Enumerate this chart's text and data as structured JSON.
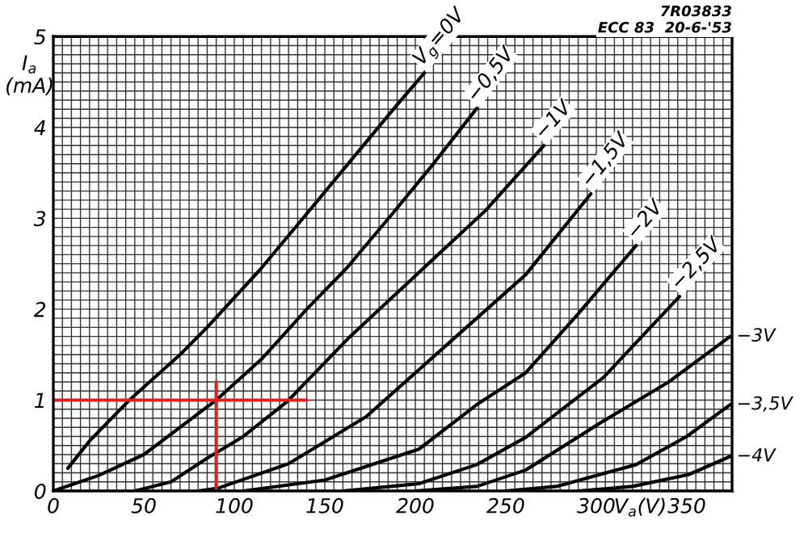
{
  "chart_data": {
    "type": "line",
    "xlabel": "V$_{a}$(V)",
    "ylabel": "I$_{a}$\n(mA)",
    "annotations": [
      "7R03833",
      "ECC 83  20-6-'53"
    ],
    "xlim": [
      0,
      375
    ],
    "ylim": [
      0,
      5
    ],
    "xticks": [
      0,
      {
        "value": 5,
        "label": null
      },
      {
        "value": 10,
        "label": null
      },
      {
        "value": 15,
        "label": null
      },
      {
        "value": 20,
        "label": null
      },
      {
        "value": 25,
        "label": null
      },
      {
        "value": 30,
        "label": null
      },
      {
        "value": 35,
        "label": null
      },
      {
        "value": 40,
        "label": null
      },
      {
        "value": 45,
        "label": null
      },
      50,
      {
        "value": 55,
        "label": null
      },
      {
        "value": 60,
        "label": null
      },
      {
        "value": 65,
        "label": null
      },
      {
        "value": 70,
        "label": null
      },
      {
        "value": 75,
        "label": null
      },
      {
        "value": 80,
        "label": null
      },
      {
        "value": 85,
        "label": null
      },
      {
        "value": 90,
        "label": null
      },
      {
        "value": 95,
        "label": null
      },
      100,
      {
        "value": 105,
        "label": null
      },
      {
        "value": 110,
        "label": null
      },
      {
        "value": 115,
        "label": null
      },
      {
        "value": 120,
        "label": null
      },
      {
        "value": 125,
        "label": null
      },
      {
        "value": 130,
        "label": null
      },
      {
        "value": 135,
        "label": null
      },
      {
        "value": 140,
        "label": null
      },
      {
        "value": 145,
        "label": null
      },
      150,
      {
        "value": 155,
        "label": null
      },
      {
        "value": 160,
        "label": null
      },
      {
        "value": 165,
        "label": null
      },
      {
        "value": 170,
        "label": null
      },
      {
        "value": 175,
        "label": null
      },
      {
        "value": 180,
        "label": null
      },
      {
        "value": 185,
        "label": null
      },
      {
        "value": 190,
        "label": null
      },
      {
        "value": 195,
        "label": null
      },
      200,
      {
        "value": 205,
        "label": null
      },
      {
        "value": 210,
        "label": null
      },
      {
        "value": 215,
        "label": null
      },
      {
        "value": 220,
        "label": null
      },
      {
        "value": 225,
        "label": null
      },
      {
        "value": 230,
        "label": null
      },
      {
        "value": 235,
        "label": null
      },
      {
        "value": 240,
        "label": null
      },
      {
        "value": 245,
        "label": null
      },
      250,
      {
        "value": 255,
        "label": null
      },
      {
        "value": 260,
        "label": null
      },
      {
        "value": 265,
        "label": null
      },
      {
        "value": 270,
        "label": null
      },
      {
        "value": 275,
        "label": null
      },
      {
        "value": 280,
        "label": null
      },
      {
        "value": 285,
        "label": null
      },
      {
        "value": 290,
        "label": null
      },
      {
        "value": 295,
        "label": null
      },
      300,
      {
        "value": 305,
        "label": null
      },
      {
        "value": 310,
        "label": null
      },
      {
        "value": 315,
        "label": null
      },
      {
        "value": 320,
        "label": null
      },
      {
        "value": 325,
        "label": null
      },
      {
        "value": 330,
        "label": null
      },
      {
        "value": 335,
        "label": null
      },
      {
        "value": 340,
        "label": null
      },
      {
        "value": 345,
        "label": null
      },
      350,
      {
        "value": 355,
        "label": null
      },
      {
        "value": 360,
        "label": null
      },
      {
        "value": 365,
        "label": null
      },
      {
        "value": 370,
        "label": null
      }
    ],
    "yticks": [
      0,
      {
        "value": 0.1,
        "label": null
      },
      {
        "value": 0.2,
        "label": null
      },
      {
        "value": 0.3,
        "label": null
      },
      {
        "value": 0.4,
        "label": null
      },
      {
        "value": 0.5,
        "label": null
      },
      {
        "value": 0.6,
        "label": null
      },
      {
        "value": 0.7,
        "label": null
      },
      {
        "value": 0.8,
        "label": null
      },
      {
        "value": 0.9,
        "label": null
      },
      1,
      {
        "value": 1.1,
        "label": null
      },
      {
        "value": 1.2,
        "label": null
      },
      {
        "value": 1.3,
        "label": null
      },
      {
        "value": 1.4,
        "label": null
      },
      {
        "value": 1.5,
        "label": null
      },
      {
        "value": 1.6,
        "label": null
      },
      {
        "value": 1.7,
        "label": null
      },
      {
        "value": 1.8,
        "label": null
      },
      {
        "value": 1.9,
        "label": null
      },
      2,
      {
        "value": 2.1,
        "label": null
      },
      {
        "value": 2.2,
        "label": null
      },
      {
        "value": 2.3,
        "label": null
      },
      {
        "value": 2.4,
        "label": null
      },
      {
        "value": 2.5,
        "label": null
      },
      {
        "value": 2.6,
        "label": null
      },
      {
        "value": 2.7,
        "label": null
      },
      {
        "value": 2.8,
        "label": null
      },
      {
        "value": 2.9,
        "label": null
      },
      3,
      {
        "value": 3.1,
        "label": null
      },
      {
        "value": 3.2,
        "label": null
      },
      {
        "value": 3.3,
        "label": null
      },
      {
        "value": 3.4,
        "label": null
      },
      {
        "value": 3.5,
        "label": null
      },
      {
        "value": 3.6,
        "label": null
      },
      {
        "value": 3.7,
        "label": null
      },
      {
        "value": 3.8,
        "label": null
      },
      {
        "value": 3.9,
        "label": null
      },
      4,
      {
        "value": 4.1,
        "label": null
      },
      {
        "value": 4.2,
        "label": null
      },
      {
        "value": 4.3,
        "label": null
      },
      {
        "value": 4.4,
        "label": null
      },
      {
        "value": 4.5,
        "label": null
      },
      {
        "value": 4.6,
        "label": null
      },
      {
        "value": 4.7,
        "label": null
      },
      {
        "value": 4.8,
        "label": null
      },
      {
        "value": 4.9,
        "label": null
      },
      5
    ],
    "grid": true,
    "marker": "none",
    "line_style": "solid",
    "series": [
      {
        "name": "V$_{g}$=0V",
        "color": "#000000",
        "x": [
          8,
          20,
          42,
          70,
          85,
          114,
          140,
          165,
          190,
          205
        ],
        "values": [
          0.25,
          0.55,
          1.0,
          1.5,
          1.8,
          2.43,
          3.05,
          3.65,
          4.25,
          4.6
        ]
      },
      {
        "name": "−0,5V",
        "color": "#000000",
        "x": [
          0,
          25,
          50,
          90,
          115,
          140,
          162,
          189,
          210,
          234
        ],
        "values": [
          0,
          0.17,
          0.4,
          1.0,
          1.45,
          2.0,
          2.45,
          3.09,
          3.6,
          4.21
        ]
      },
      {
        "name": "−1V",
        "color": "#000000",
        "x": [
          45,
          65,
          85,
          105,
          129,
          164,
          239,
          271
        ],
        "values": [
          0,
          0.1,
          0.36,
          0.6,
          0.98,
          1.7,
          3.09,
          3.8
        ]
      },
      {
        "name": "−1,5V",
        "color": "#000000",
        "x": [
          80,
          91,
          130,
          173,
          217,
          261,
          297
        ],
        "values": [
          0,
          0.03,
          0.3,
          0.82,
          1.6,
          2.38,
          3.27
        ]
      },
      {
        "name": "−2V",
        "color": "#000000",
        "x": [
          105,
          150,
          202,
          234,
          261,
          290,
          322
        ],
        "values": [
          0,
          0.12,
          0.46,
          0.95,
          1.3,
          1.95,
          2.7
        ]
      },
      {
        "name": "−2,5V",
        "color": "#000000",
        "x": [
          160,
          202,
          234,
          261,
          304,
          346
        ],
        "values": [
          0,
          0.08,
          0.29,
          0.59,
          1.25,
          2.14
        ]
      },
      {
        "name": "−3V",
        "color": "#000000",
        "x": [
          200,
          234,
          261,
          304,
          340,
          374
        ],
        "values": [
          0,
          0.05,
          0.23,
          0.77,
          1.2,
          1.7
        ]
      },
      {
        "name": "−3,5V",
        "color": "#000000",
        "x": [
          250,
          278,
          322,
          350,
          374
        ],
        "values": [
          0,
          0.05,
          0.29,
          0.6,
          0.95
        ]
      },
      {
        "name": "−4V",
        "color": "#000000",
        "x": [
          290,
          320,
          351,
          374
        ],
        "values": [
          0,
          0.05,
          0.18,
          0.38
        ]
      },
      {
        "color": "#e02020",
        "x": [
          0,
          140
        ],
        "values": [
          1,
          1
        ]
      },
      {
        "color": "#e02020",
        "x": [
          90,
          90
        ],
        "values": [
          0,
          1.2
        ]
      }
    ]
  }
}
